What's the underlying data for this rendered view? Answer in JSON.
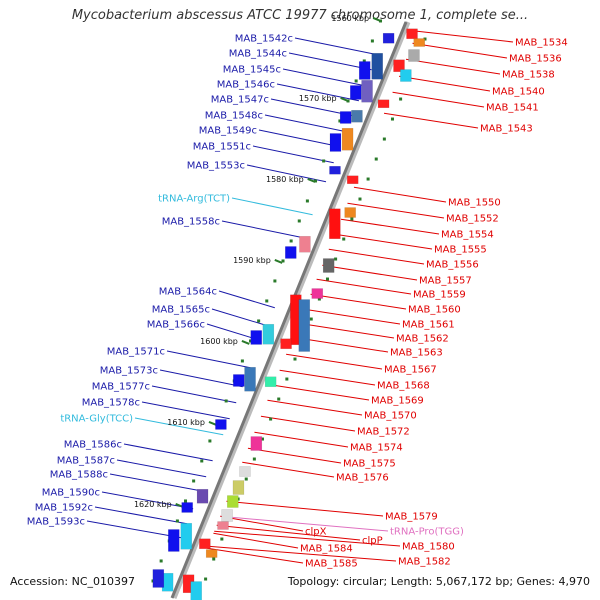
{
  "title": "Mycobacterium abscessus ATCC 19977 chromosome 1, complete se...",
  "accession": "Accession: NC_010397",
  "summary": "Topology: circular; Length: 5,067,172 bp; Genes: 4,970",
  "colors": {
    "left_label": "#1a1aa8",
    "right_label": "#e00000",
    "trna_left": "#33bbdd",
    "trna_right": "#e070c0",
    "backbone": "#777777",
    "tick": "#2a7a2a"
  },
  "ticks": [
    "1560 kbp",
    "1570 kbp",
    "1580 kbp",
    "1590 kbp",
    "1600 kbp",
    "1610 kbp",
    "1620 kbp"
  ],
  "left_labels": [
    "MAB_1542c",
    "MAB_1544c",
    "MAB_1545c",
    "MAB_1546c",
    "MAB_1547c",
    "MAB_1548c",
    "MAB_1549c",
    "MAB_1551c",
    "MAB_1553c",
    "tRNA-Arg(TCT)",
    "MAB_1558c",
    "MAB_1564c",
    "MAB_1565c",
    "MAB_1566c",
    "MAB_1571c",
    "MAB_1573c",
    "MAB_1577c",
    "MAB_1578c",
    "tRNA-Gly(TCC)",
    "MAB_1586c",
    "MAB_1587c",
    "MAB_1588c",
    "MAB_1590c",
    "MAB_1592c",
    "MAB_1593c"
  ],
  "right_labels": [
    "MAB_1534",
    "MAB_1536",
    "MAB_1538",
    "MAB_1540",
    "MAB_1541",
    "MAB_1543",
    "MAB_1550",
    "MAB_1552",
    "MAB_1554",
    "MAB_1555",
    "MAB_1556",
    "MAB_1557",
    "MAB_1559",
    "MAB_1560",
    "MAB_1561",
    "MAB_1562",
    "MAB_1563",
    "MAB_1567",
    "MAB_1568",
    "MAB_1569",
    "MAB_1570",
    "MAB_1572",
    "MAB_1574",
    "MAB_1575",
    "MAB_1576",
    "MAB_1579",
    "tRNA-Pro(TGG)",
    "MAB_1580",
    "MAB_1582",
    "clpX",
    "clpP",
    "MAB_1584",
    "MAB_1585"
  ]
}
